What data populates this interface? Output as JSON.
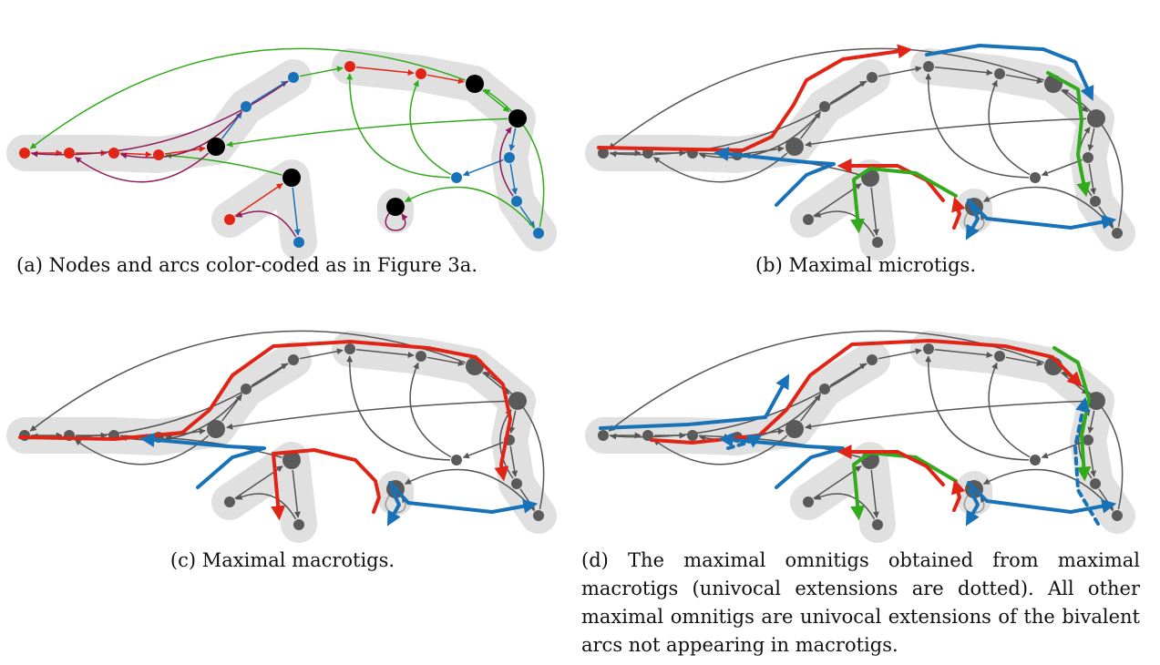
{
  "colors": {
    "highlight": "#e0e0e0",
    "gray_node": "#5a5a5a",
    "gray_arc": "#555555",
    "red": "#e02516",
    "blue": "#1872b8",
    "green": "#31ab1c",
    "purple": "#8e1a5a",
    "black": "#000000"
  },
  "captions": {
    "a": "(a) Nodes and arcs color-coded as in Figure 3a.",
    "b": "(b) Maximal microtigs.",
    "c": "(c) Maximal macrotigs.",
    "d": "(d) The maximal omnitigs obtained from maximal macrotigs (univocal extensions are dotted). All other maximal omnitigs are univocal extensions of the bivalent arcs not appearing in macrotigs."
  },
  "panels": [
    {
      "id": "a",
      "style": "colored"
    },
    {
      "id": "b",
      "style": "microtigs"
    },
    {
      "id": "c",
      "style": "macrotigs"
    },
    {
      "id": "d",
      "style": "omnitigs"
    }
  ]
}
